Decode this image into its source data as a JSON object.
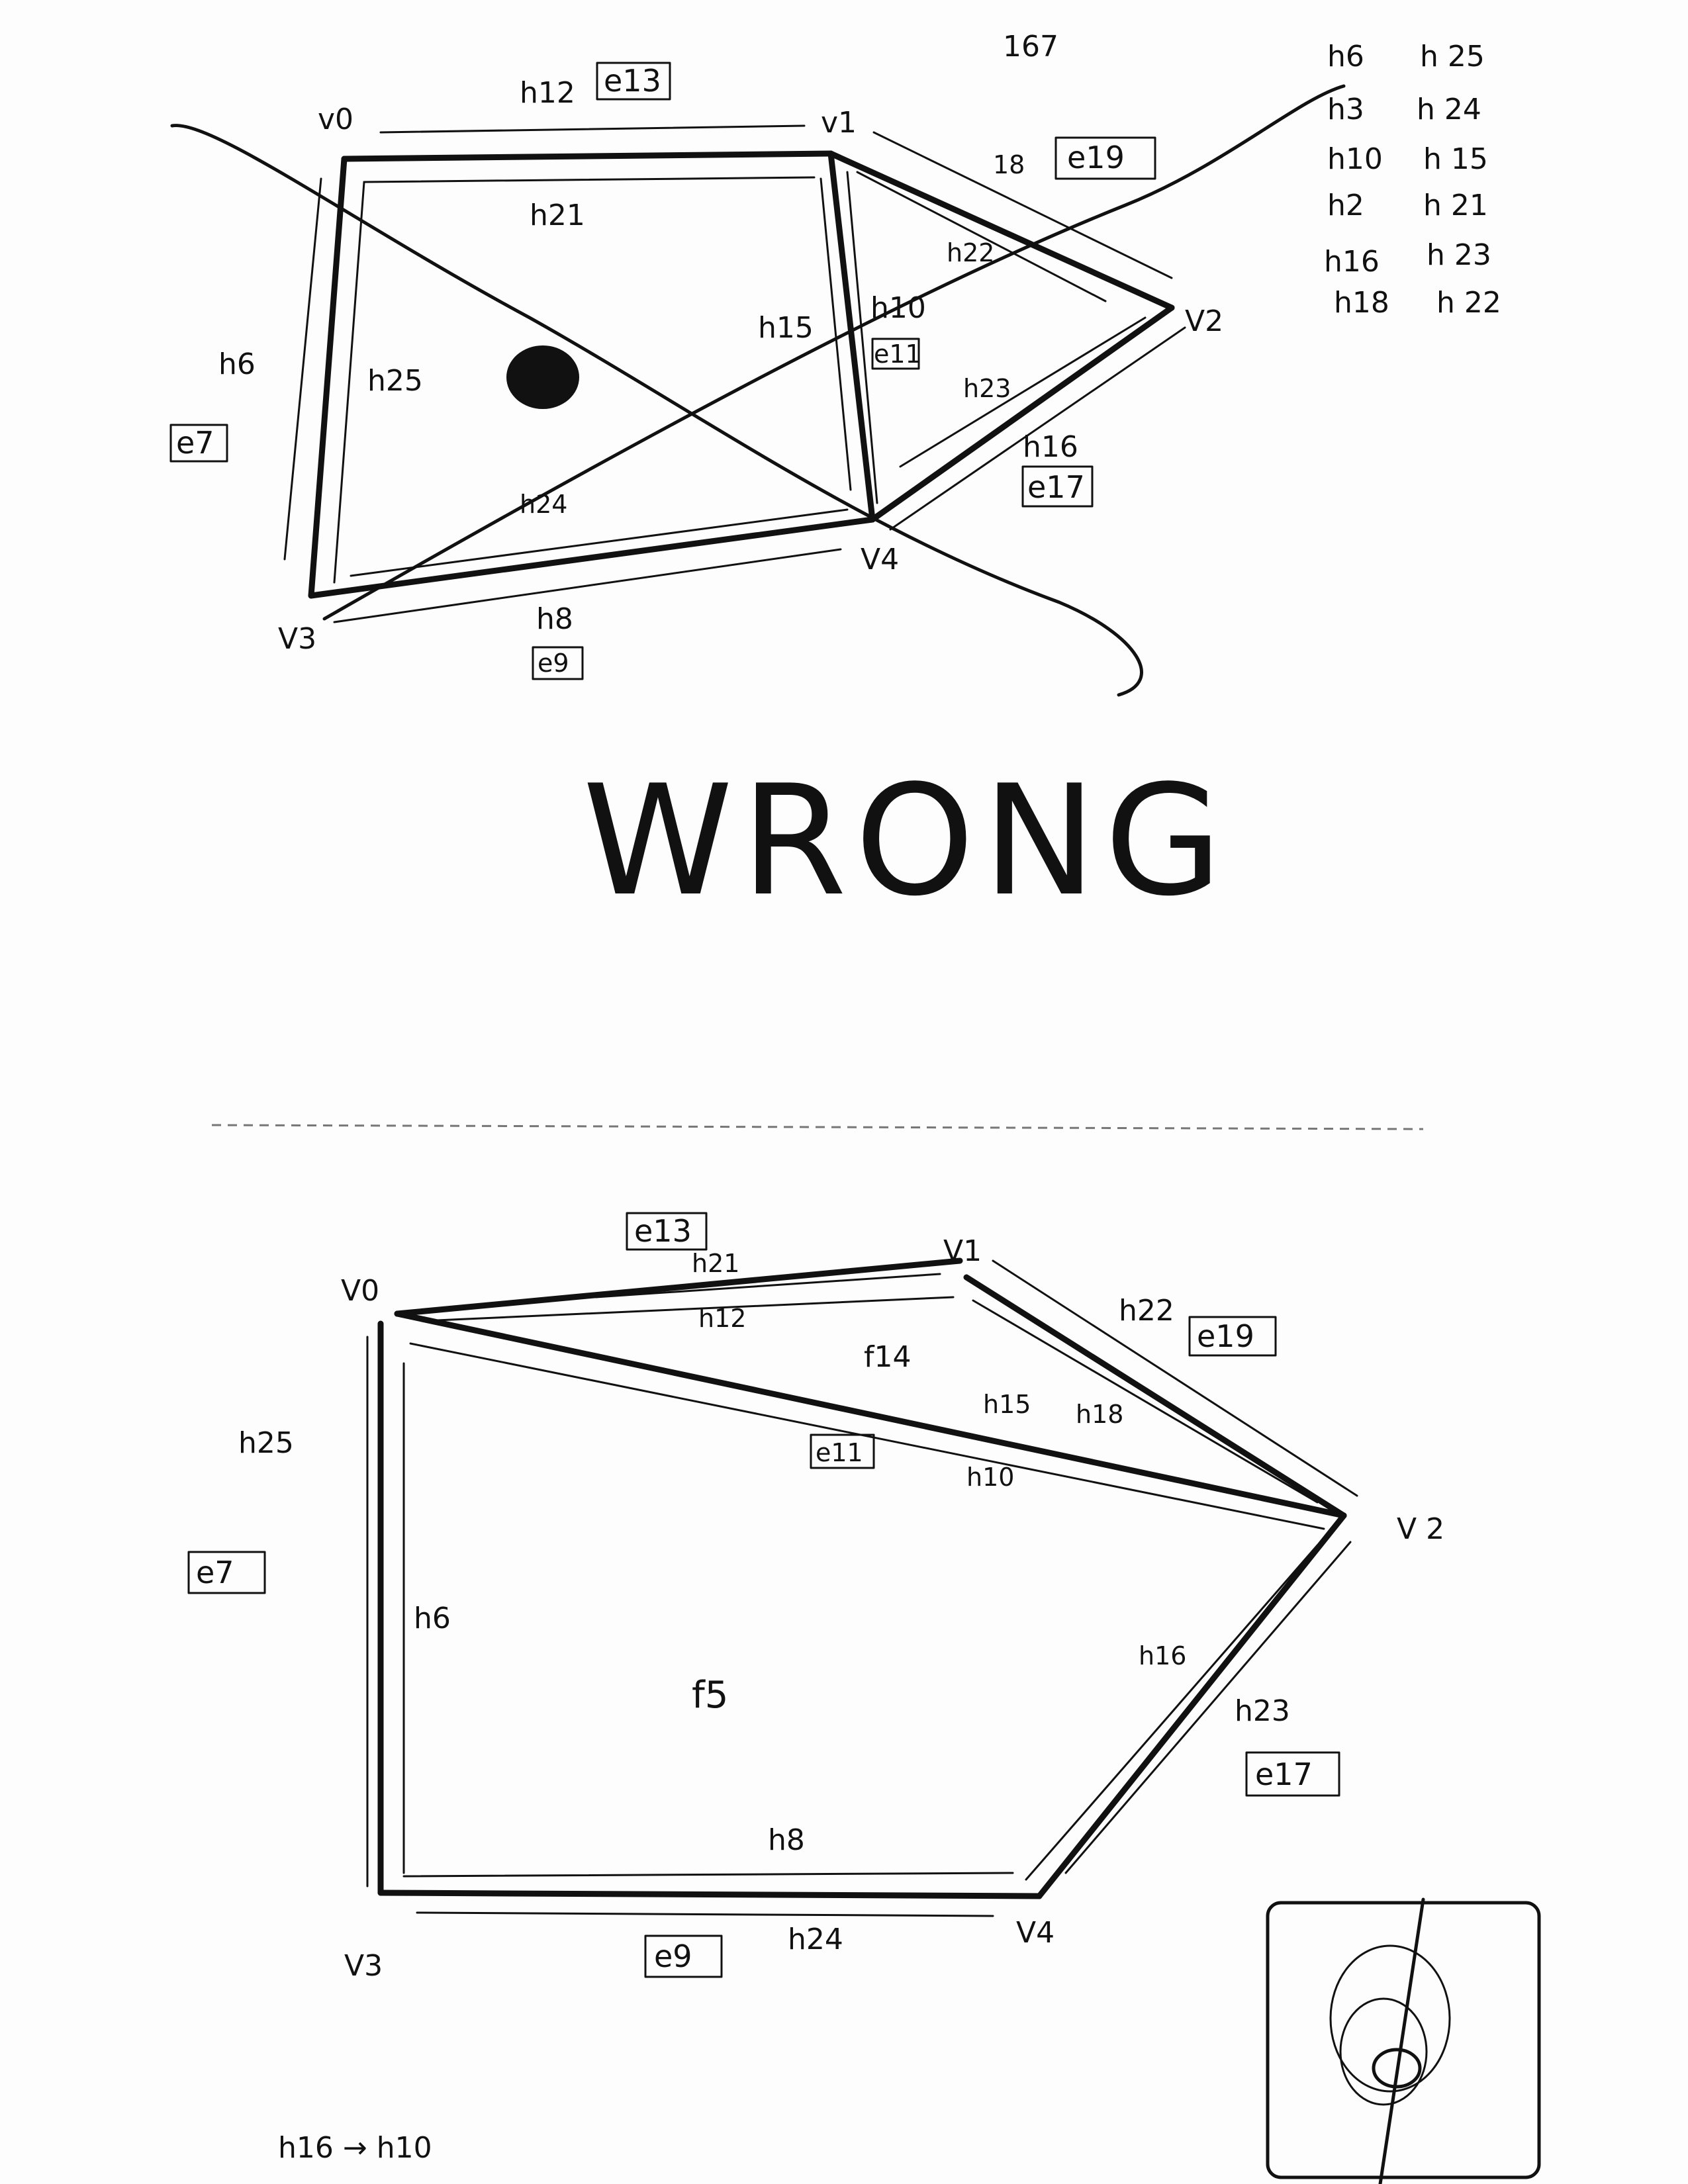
{
  "page": {
    "number": "167"
  },
  "top_diagram": {
    "verdict": "WRONG",
    "vertices": [
      "v0",
      "v1",
      "V2",
      "V3",
      "V4"
    ],
    "edges": [
      "e13",
      "e19",
      "e7",
      "e17",
      "e9",
      "e11"
    ],
    "halfedges": [
      "h12",
      "h21",
      "h6",
      "h25",
      "h15",
      "h10",
      "h22",
      "h23",
      "h16",
      "h24",
      "h8",
      "18"
    ],
    "list_left": [
      "h6",
      "h3",
      "h10",
      "h2",
      "h16",
      "h18"
    ],
    "list_right": [
      "h 25",
      "h 24",
      "h 15",
      "h 21",
      "h 23",
      "h 22"
    ]
  },
  "bottom_diagram": {
    "vertices": [
      "V0",
      "V1",
      "V 2",
      "V3",
      "V4"
    ],
    "edges": [
      "e13",
      "e19",
      "e11",
      "e7",
      "e17",
      "e9"
    ],
    "halfedges": [
      "h21",
      "h12",
      "h22",
      "h15",
      "h18",
      "h10",
      "h25",
      "h6",
      "h16",
      "h23",
      "h8",
      "h24"
    ],
    "faces": [
      "f14",
      "f5"
    ],
    "footnote": "h16 → h10"
  },
  "colors": {
    "ink": "#111111",
    "paper": "#fdfdfd"
  }
}
